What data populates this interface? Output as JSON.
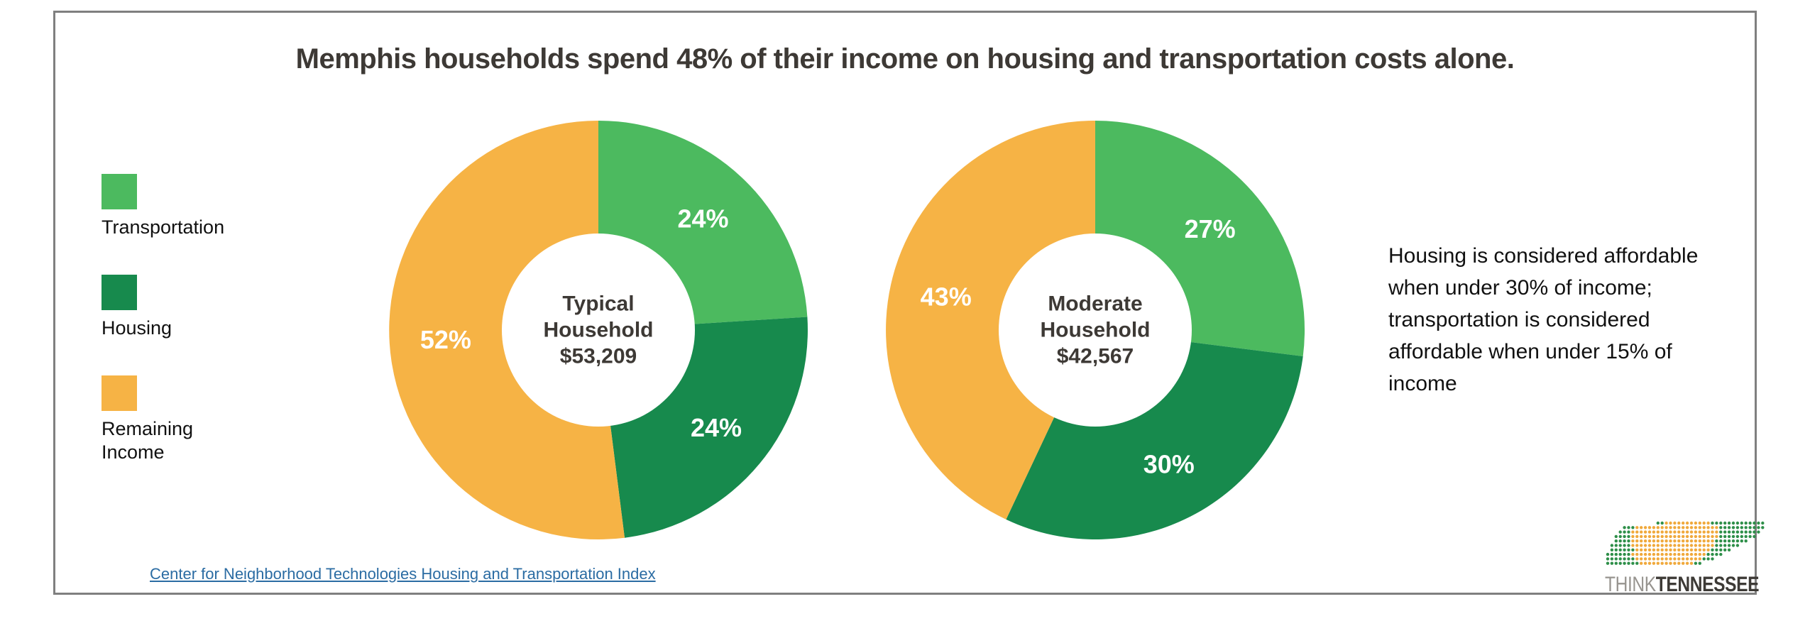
{
  "title": "Memphis households spend 48% of their income on housing and transportation costs alone.",
  "legend": {
    "items": [
      {
        "label": "Transportation",
        "color": "#4cba5f"
      },
      {
        "label": "Housing",
        "color": "#178a4d"
      },
      {
        "label": "Remaining Income",
        "color": "#f6b345"
      }
    ]
  },
  "chart_data": [
    {
      "type": "pie",
      "subtype": "donut",
      "center_label": {
        "name": "Typical Household",
        "income": "$53,209"
      },
      "categories": [
        "Transportation",
        "Housing",
        "Remaining Income"
      ],
      "values": [
        24,
        24,
        52
      ],
      "labels": [
        "24%",
        "24%",
        "52%"
      ],
      "colors": [
        "#4cba5f",
        "#178a4d",
        "#f6b345"
      ],
      "label_color": "#ffffff",
      "start_angle_deg": 0,
      "direction": "clockwise",
      "hole_ratio": 0.46,
      "legend_position": "left"
    },
    {
      "type": "pie",
      "subtype": "donut",
      "center_label": {
        "name": "Moderate Household",
        "income": "$42,567"
      },
      "categories": [
        "Transportation",
        "Housing",
        "Remaining Income"
      ],
      "values": [
        27,
        30,
        43
      ],
      "labels": [
        "27%",
        "30%",
        "43%"
      ],
      "colors": [
        "#4cba5f",
        "#178a4d",
        "#f6b345"
      ],
      "label_color": "#ffffff",
      "start_angle_deg": 0,
      "direction": "clockwise",
      "hole_ratio": 0.46,
      "legend_position": "left"
    }
  ],
  "note": "Housing is considered affordable when under 30% of income; transportation is considered affordable when under 15% of income",
  "source_link": "Center for Neighborhood Technologies Housing and Transportation Index",
  "logo": {
    "think": "THINK",
    "tennessee": "TENNESSEE",
    "dot_colors": {
      "green": "#2e8f49",
      "yellow": "#f0a93c"
    },
    "text_colors": {
      "think": "#97948f",
      "tennessee": "#3d3a36"
    }
  },
  "frame_color": "#7f7f7f"
}
